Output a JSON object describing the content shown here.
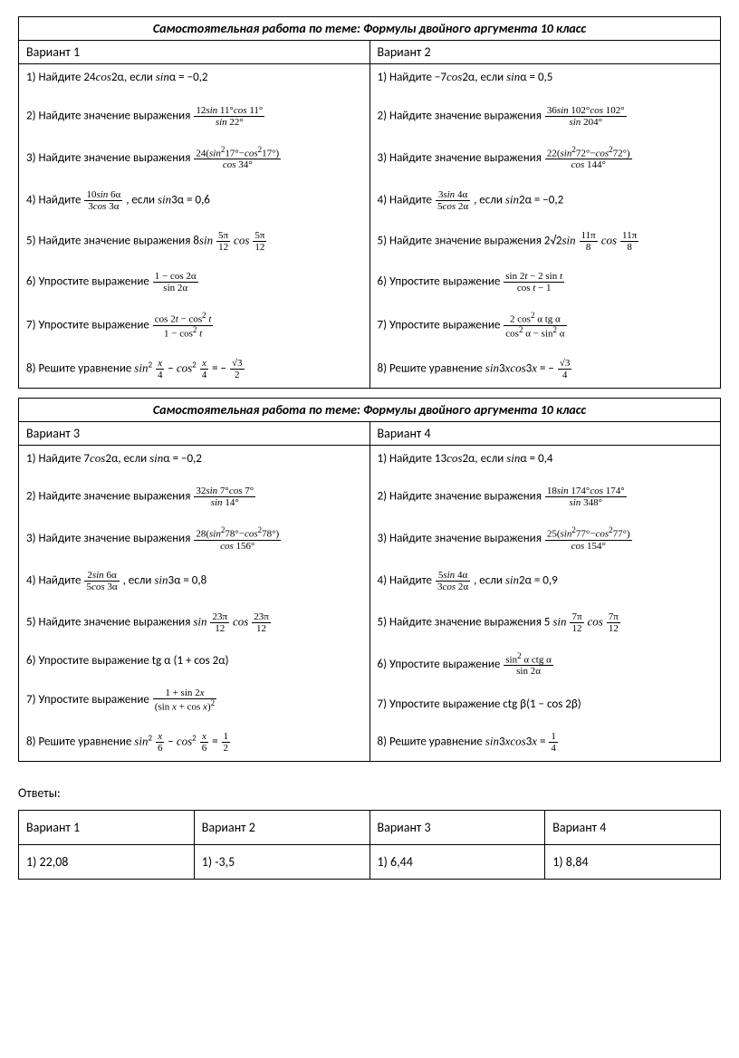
{
  "title": "Самостоятельная работа по теме: Формулы двойного аргумента 10 класс",
  "variant_label": "Вариант",
  "answers_label": "Ответы:",
  "blocks": [
    {
      "left": {
        "name": "Вариант 1",
        "tasks": [
          "1) Найдите 24<span class='mi'>cos</span>2α, если <span class='mi'>sin</span>α = −0,2",
          "2) Найдите значение выражения <span class='frac'><span class='num'>12<span class='mi'>sin</span> 11°<span class='mi'>cos</span> 11°</span><span class='den'><span class='mi'>sin</span> 22°</span></span>",
          "3) Найдите значение выражения <span class='frac'><span class='num'>24(<span class='mi'>sin</span><span class='sup'>2</span>17°−<span class='mi'>cos</span><span class='sup'>2</span>17°)</span><span class='den'><span class='mi'>cos</span> 34°</span></span>",
          "4) Найдите <span class='frac'><span class='num'>10<span class='mi'>sin</span> 6α</span><span class='den'>3<span class='mi'>cos</span> 3α</span></span> , если <span class='mi'>sin</span>3α = 0,6",
          "5) Найдите значение выражения 8<span class='mi'>sin</span> <span class='frac'><span class='num'>5π</span><span class='den'>12</span></span> <span class='mi'>cos</span> <span class='frac'><span class='num'>5π</span><span class='den'>12</span></span>",
          "6) Упростите выражение <span class='frac'><span class='num'>1 − cos 2α</span><span class='den'>sin 2α</span></span>",
          "7) Упростите выражение <span class='frac'><span class='num'>cos 2<span class='mi'>t</span> − cos<span class='sup'>2</span> <span class='mi'>t</span></span><span class='den'>1 − cos<span class='sup'>2</span> <span class='mi'>t</span></span></span>",
          "8) Решите уравнение <span class='mi'>sin</span><span class='sup'>2</span> <span class='frac'><span class='num'><span class='mi'>x</span></span><span class='den'>4</span></span> − <span class='mi'>cos</span><span class='sup'>2</span> <span class='frac'><span class='num'><span class='mi'>x</span></span><span class='den'>4</span></span> = − <span class='frac'><span class='num'>√3</span><span class='den'>2</span></span>"
        ]
      },
      "right": {
        "name": "Вариант 2",
        "tasks": [
          "1) Найдите −7<span class='mi'>cos</span>2α, если <span class='mi'>sin</span>α = 0,5",
          "2) Найдите значение выражения <span class='frac'><span class='num'>36<span class='mi'>sin</span> 102°<span class='mi'>cos</span> 102°</span><span class='den'><span class='mi'>sin</span> 204°</span></span>",
          "3) Найдите значение выражения <span class='frac'><span class='num'>22(<span class='mi'>sin</span><span class='sup'>2</span>72°−<span class='mi'>cos</span><span class='sup'>2</span>72°)</span><span class='den'><span class='mi'>cos</span> 144°</span></span>",
          "4) Найдите <span class='frac'><span class='num'>3<span class='mi'>sin</span> 4α</span><span class='den'>5<span class='mi'>cos</span> 2α</span></span> , если <span class='mi'>sin</span>2α = −0,2",
          "5) Найдите значение выражения 2√2<span class='mi'>sin</span> <span class='frac'><span class='num'>11π</span><span class='den'>8</span></span> <span class='mi'>cos</span> <span class='frac'><span class='num'>11π</span><span class='den'>8</span></span>",
          "6) Упростите выражение <span class='frac'><span class='num'>sin 2<span class='mi'>t</span> − 2 sin <span class='mi'>t</span></span><span class='den'>cos <span class='mi'>t</span> − 1</span></span>",
          "7) Упростите выражение <span class='frac'><span class='num'>2 cos<span class='sup'>2</span> α tg α</span><span class='den'>cos<span class='sup'>2</span> α − sin<span class='sup'>2</span> α</span></span>",
          "8) Решите уравнение <span class='mi'>sin</span>3<span class='mi'>x</span><span class='mi'>cos</span>3<span class='mi'>x</span> = − <span class='frac'><span class='num'>√3</span><span class='den'>4</span></span>"
        ]
      }
    },
    {
      "left": {
        "name": "Вариант 3",
        "tasks": [
          "1) Найдите 7<span class='mi'>cos</span>2α, если <span class='mi'>sin</span>α = −0,2",
          "2) Найдите значение выражения <span class='frac'><span class='num'>32<span class='mi'>sin</span> 7°<span class='mi'>cos</span> 7°</span><span class='den'><span class='mi'>sin</span> 14°</span></span>",
          "3) Найдите значение выражения <span class='frac'><span class='num'>28(<span class='mi'>sin</span><span class='sup'>2</span>78°−<span class='mi'>cos</span><span class='sup'>2</span>78°)</span><span class='den'><span class='mi'>cos</span> 156°</span></span>",
          "4) Найдите <span class='frac'><span class='num'>2<span class='mi'>sin</span> 6α</span><span class='den'>5<span class='mi'>cos</span> 3α</span></span> , если <span class='mi'>sin</span>3α = 0,8",
          "5) Найдите значение выражения <span class='mi'>sin</span> <span class='frac'><span class='num'>23π</span><span class='den'>12</span></span> <span class='mi'>cos</span> <span class='frac'><span class='num'>23π</span><span class='den'>12</span></span>",
          "6) Упростите выражение tg α (1 + cos 2α)",
          "7) Упростите выражение <span class='frac'><span class='num'>1 + sin 2<span class='mi'>x</span></span><span class='den'>(sin <span class='mi'>x</span> + cos <span class='mi'>x</span>)<span class='sup'>2</span></span></span>",
          "8) Решите уравнение <span class='mi'>sin</span><span class='sup'>2</span> <span class='frac'><span class='num'><span class='mi'>x</span></span><span class='den'>6</span></span> − <span class='mi'>cos</span><span class='sup'>2</span> <span class='frac'><span class='num'><span class='mi'>x</span></span><span class='den'>6</span></span> = <span class='frac'><span class='num'>1</span><span class='den'>2</span></span>"
        ]
      },
      "right": {
        "name": "Вариант 4",
        "tasks": [
          "1) Найдите 13<span class='mi'>cos</span>2α, если <span class='mi'>sin</span>α = 0,4",
          "2) Найдите значение выражения <span class='frac'><span class='num'>18<span class='mi'>sin</span> 174°<span class='mi'>cos</span> 174°</span><span class='den'><span class='mi'>sin</span> 348°</span></span>",
          "3) Найдите значение выражения <span class='frac'><span class='num'>25(<span class='mi'>sin</span><span class='sup'>2</span>77°−<span class='mi'>cos</span><span class='sup'>2</span>77°)</span><span class='den'><span class='mi'>cos</span> 154°</span></span>",
          "4) Найдите <span class='frac'><span class='num'>5<span class='mi'>sin</span> 4α</span><span class='den'>3<span class='mi'>cos</span> 2α</span></span> , если <span class='mi'>sin</span>2α = 0,9",
          "5) Найдите значение выражения 5 <span class='mi'>sin</span> <span class='frac'><span class='num'>7π</span><span class='den'>12</span></span> <span class='mi'>cos</span> <span class='frac'><span class='num'>7π</span><span class='den'>12</span></span>",
          "6) Упростите выражение <span class='frac'><span class='num'>sin<span class='sup'>2</span> α ctg α</span><span class='den'>sin 2α</span></span>",
          "7) Упростите выражение ctg β(1 − cos 2β)",
          "8) Решите уравнение <span class='mi'>sin</span>3<span class='mi'>x</span><span class='mi'>cos</span>3<span class='mi'>x</span> = <span class='frac'><span class='num'>1</span><span class='den'>4</span></span>"
        ]
      }
    }
  ],
  "answers": {
    "headers": [
      "Вариант 1",
      "Вариант 2",
      "Вариант 3",
      "Вариант 4"
    ],
    "row": [
      "1) 22,08",
      "1) -3,5",
      "1) 6,44",
      "1) 8,84"
    ]
  }
}
